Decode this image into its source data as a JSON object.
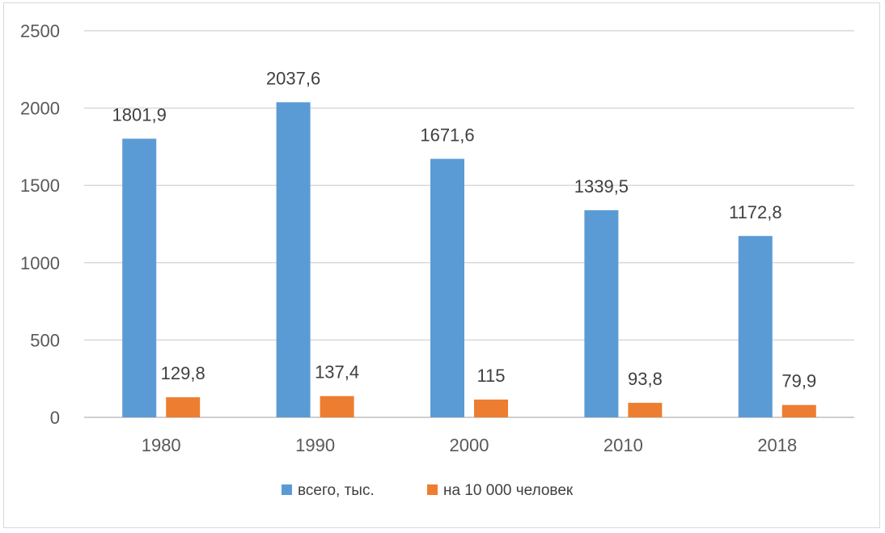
{
  "chart_data": {
    "type": "bar",
    "categories": [
      "1980",
      "1990",
      "2000",
      "2010",
      "2018"
    ],
    "series": [
      {
        "name": "всего, тыс.",
        "values": [
          1801.9,
          2037.6,
          1671.6,
          1339.5,
          1172.8
        ],
        "labels": [
          "1801,9",
          "2037,6",
          "1671,6",
          "1339,5",
          "1172,8"
        ],
        "color": "#5b9bd5"
      },
      {
        "name": "на 10 000 человек",
        "values": [
          129.8,
          137.4,
          115,
          93.8,
          79.9
        ],
        "labels": [
          "129,8",
          "137,4",
          "115",
          "93,8",
          "79,9"
        ],
        "color": "#ed7d31"
      }
    ],
    "ylim": [
      0,
      2500
    ],
    "yticks": [
      "0",
      "500",
      "1000",
      "1500",
      "2000",
      "2500"
    ],
    "grid": true,
    "legend_position": "bottom",
    "gridline_color": "#d9d9d9",
    "axis_color": "#bfbfbf"
  }
}
